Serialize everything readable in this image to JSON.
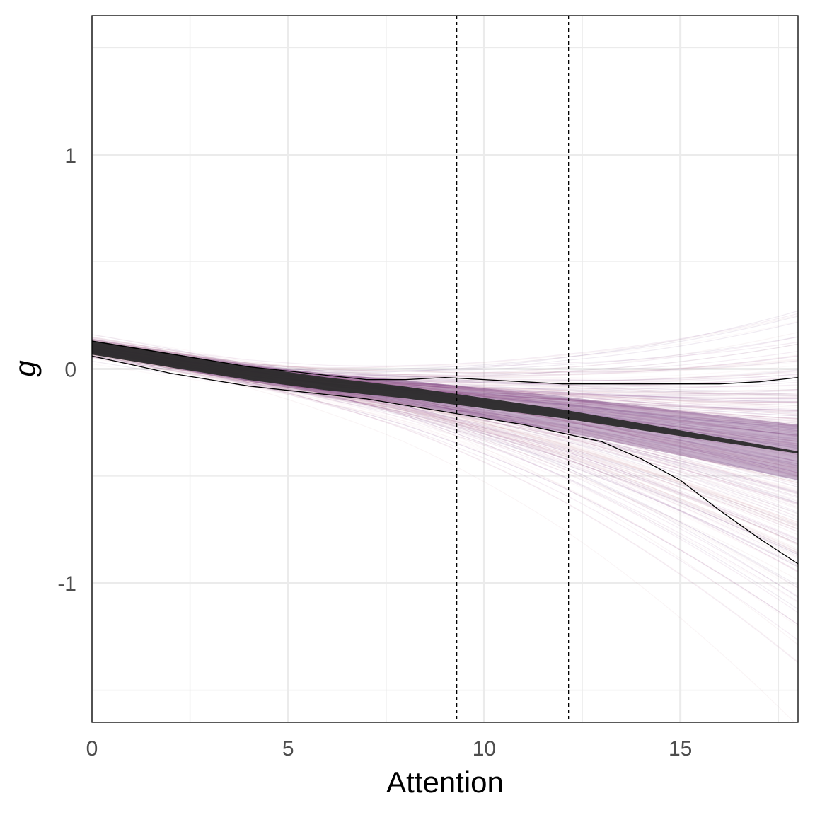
{
  "chart_data": {
    "type": "line",
    "xlabel": "Attention",
    "ylabel": "g",
    "xlim": [
      0,
      18
    ],
    "ylim": [
      -1.65,
      1.65
    ],
    "x_ticks": [
      0,
      5,
      10,
      15
    ],
    "x_tick_labels": [
      "0",
      "5",
      "10",
      "15"
    ],
    "y_ticks": [
      -1,
      0,
      1
    ],
    "y_tick_labels": [
      "-1",
      "0",
      "1"
    ],
    "x_minor_gridlines": [
      2.5,
      7.5,
      12.5,
      17.5
    ],
    "y_minor_gridlines": [
      -1.5,
      -0.5,
      0.5,
      1.5
    ],
    "grid": true,
    "legend": "none",
    "vertical_reference_lines": [
      9.3,
      12.15
    ],
    "mean_curve": {
      "x": [
        0,
        2,
        4,
        6,
        8,
        10,
        12,
        14,
        16,
        18
      ],
      "y": [
        0.1,
        0.04,
        -0.02,
        -0.07,
        -0.11,
        -0.16,
        -0.21,
        -0.27,
        -0.33,
        -0.39
      ]
    },
    "band_upper": {
      "x": [
        0,
        1,
        2,
        3,
        4,
        5,
        6,
        7,
        8,
        9,
        10,
        11,
        12,
        13,
        14,
        15,
        16,
        17,
        18
      ],
      "y": [
        0.13,
        0.1,
        0.07,
        0.04,
        0.01,
        -0.01,
        -0.03,
        -0.05,
        -0.05,
        -0.04,
        -0.05,
        -0.06,
        -0.07,
        -0.07,
        -0.07,
        -0.07,
        -0.07,
        -0.06,
        -0.04
      ]
    },
    "band_lower": {
      "x": [
        0,
        1,
        2,
        3,
        4,
        5,
        6,
        7,
        8,
        9,
        10,
        11,
        12,
        13,
        14,
        15,
        16,
        17,
        18
      ],
      "y": [
        0.06,
        0.02,
        -0.02,
        -0.05,
        -0.08,
        -0.1,
        -0.12,
        -0.14,
        -0.17,
        -0.2,
        -0.23,
        -0.26,
        -0.3,
        -0.34,
        -0.42,
        -0.52,
        -0.66,
        -0.79,
        -0.91
      ]
    },
    "colors": {
      "grid": "#ebebeb",
      "panel_border": "#000000",
      "reference_line": "#000000",
      "envelope_line": "#000000",
      "core_band": "#2b2b2b",
      "spaghetti_palette": [
        "#5e1f6b",
        "#8b3a80",
        "#c98e9e",
        "#e9bcc4"
      ]
    }
  }
}
